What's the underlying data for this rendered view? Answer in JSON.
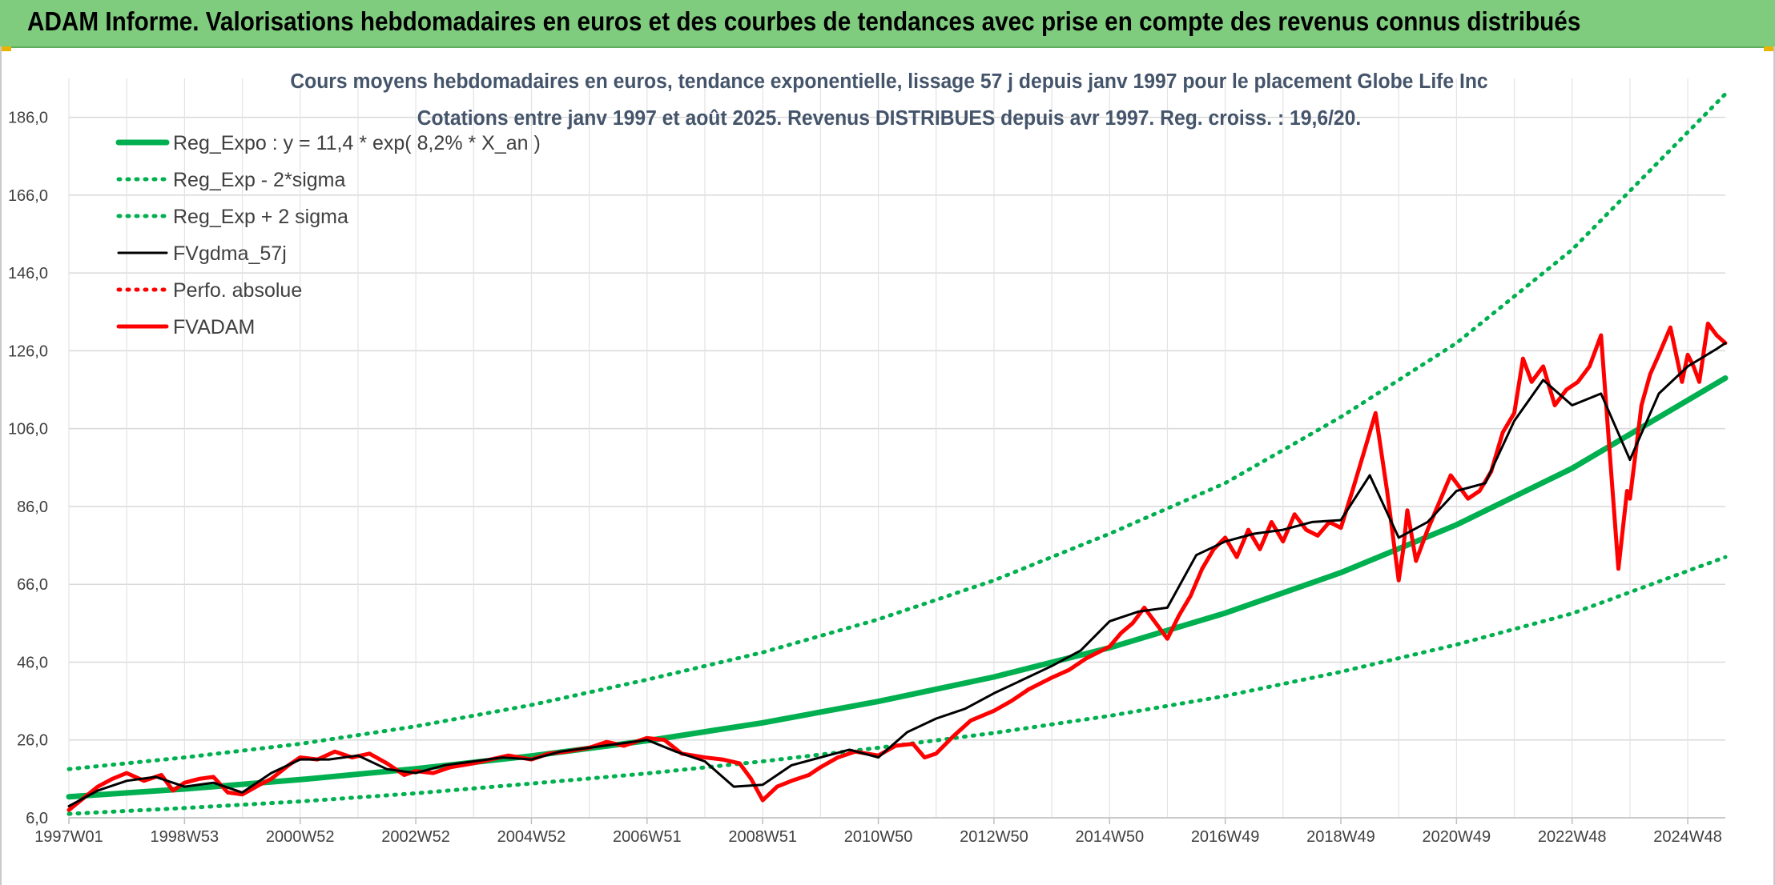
{
  "header": {
    "title": "ADAM Informe. Valorisations hebdomadaires en euros et des courbes de tendances avec prise en compte des revenus connus distribués"
  },
  "colors": {
    "header_bg": "#7fcc7f",
    "trend": "#00b050",
    "adam": "#ff0000",
    "smoothed": "#000000",
    "title": "#44546a"
  },
  "chart_data": {
    "type": "line",
    "title": "Cours moyens hebdomadaires en euros, tendance exponentielle, lissage 57 j depuis janv 1997 pour le placement Globe Life Inc",
    "subtitle": "Cotations entre janv 1997 et août 2025. Revenus DISTRIBUES depuis avr 1997. Reg. croiss. : 19,6/20.",
    "xlabel": "",
    "ylabel": "",
    "x_range": [
      1997.0,
      2025.65
    ],
    "ylim": [
      6,
      196
    ],
    "y_ticks": [
      6,
      26,
      46,
      66,
      86,
      106,
      126,
      146,
      166,
      186
    ],
    "y_tick_labels": [
      "6,0",
      "26,0",
      "46,0",
      "66,0",
      "86,0",
      "106,0",
      "126,0",
      "146,0",
      "166,0",
      "186,0"
    ],
    "x_ticks": [
      {
        "label": "1997W01",
        "x": 1997.0
      },
      {
        "label": "1998W53",
        "x": 1999.0
      },
      {
        "label": "2000W52",
        "x": 2001.0
      },
      {
        "label": "2002W52",
        "x": 2003.0
      },
      {
        "label": "2004W52",
        "x": 2005.0
      },
      {
        "label": "2006W51",
        "x": 2007.0
      },
      {
        "label": "2008W51",
        "x": 2009.0
      },
      {
        "label": "2010W50",
        "x": 2011.0
      },
      {
        "label": "2012W50",
        "x": 2013.0
      },
      {
        "label": "2014W50",
        "x": 2015.0
      },
      {
        "label": "2016W49",
        "x": 2017.0
      },
      {
        "label": "2018W49",
        "x": 2019.0
      },
      {
        "label": "2020W49",
        "x": 2021.0
      },
      {
        "label": "2022W48",
        "x": 2023.0
      },
      {
        "label": "2024W48",
        "x": 2025.0
      }
    ],
    "grid": true,
    "legend_position": "top-left",
    "series": [
      {
        "name": "Reg_Expo : y = 11,4 * exp( 8,2% *  X_an )",
        "style": "solid-thick",
        "color": "#00b050",
        "x": [
          1997.0,
          1999.0,
          2001.0,
          2003.0,
          2005.0,
          2007.0,
          2009.0,
          2011.0,
          2013.0,
          2015.0,
          2017.0,
          2019.0,
          2021.0,
          2023.0,
          2025.65
        ],
        "values": [
          11.4,
          13.4,
          15.8,
          18.6,
          21.9,
          25.8,
          30.4,
          35.9,
          42.2,
          49.7,
          58.6,
          69.0,
          81.3,
          95.8,
          119.0
        ]
      },
      {
        "name": "Reg_Exp - 2*sigma",
        "style": "dotted",
        "color": "#00b050",
        "x": [
          1997.0,
          1999.0,
          2001.0,
          2003.0,
          2005.0,
          2007.0,
          2009.0,
          2011.0,
          2013.0,
          2015.0,
          2017.0,
          2019.0,
          2021.0,
          2023.0,
          2025.65
        ],
        "values": [
          7.0,
          8.5,
          10.2,
          12.3,
          14.8,
          17.4,
          20.5,
          24.0,
          27.8,
          32.2,
          37.3,
          43.5,
          50.5,
          58.5,
          73.0
        ]
      },
      {
        "name": "Reg_Exp + 2 sigma",
        "style": "dotted",
        "color": "#00b050",
        "x": [
          1997.0,
          1999.0,
          2001.0,
          2003.0,
          2005.0,
          2007.0,
          2009.0,
          2011.0,
          2013.0,
          2015.0,
          2017.0,
          2019.0,
          2021.0,
          2023.0,
          2025.65
        ],
        "values": [
          18.5,
          21.5,
          25.0,
          29.5,
          35.0,
          41.5,
          48.5,
          57.0,
          67.0,
          79.0,
          92.0,
          109.0,
          128.0,
          152.0,
          192.0
        ]
      },
      {
        "name": "FVgdma_57j",
        "style": "solid",
        "color": "#000000",
        "x": [
          1997.0,
          1997.5,
          1998.0,
          1998.5,
          1999.0,
          1999.5,
          2000.0,
          2000.5,
          2001.0,
          2001.5,
          2002.0,
          2002.5,
          2003.0,
          2003.5,
          2004.0,
          2004.5,
          2005.0,
          2005.5,
          2006.0,
          2006.5,
          2007.0,
          2007.5,
          2008.0,
          2008.5,
          2009.0,
          2009.5,
          2010.0,
          2010.5,
          2011.0,
          2011.5,
          2012.0,
          2012.5,
          2013.0,
          2013.5,
          2014.0,
          2014.5,
          2015.0,
          2015.5,
          2016.0,
          2016.5,
          2017.0,
          2017.5,
          2018.0,
          2018.5,
          2019.0,
          2019.5,
          2020.0,
          2020.5,
          2021.0,
          2021.5,
          2022.0,
          2022.5,
          2023.0,
          2023.5,
          2024.0,
          2024.5,
          2025.0,
          2025.5,
          2025.65
        ],
        "values": [
          9.0,
          13.0,
          15.5,
          16.5,
          14.0,
          15.0,
          12.5,
          17.5,
          21.0,
          21.0,
          22.0,
          18.5,
          17.5,
          19.5,
          20.5,
          21.5,
          21.0,
          23.0,
          24.0,
          25.0,
          26.0,
          23.0,
          20.5,
          14.0,
          14.5,
          19.5,
          21.5,
          23.5,
          21.5,
          28.0,
          31.5,
          34.0,
          38.0,
          41.5,
          45.0,
          49.0,
          56.5,
          59.0,
          60.0,
          73.5,
          77.0,
          79.0,
          80.0,
          82.0,
          82.5,
          94.0,
          78.0,
          82.0,
          90.0,
          92.0,
          108.0,
          118.5,
          112.0,
          115.0,
          98.0,
          115.0,
          122.0,
          126.5,
          128.0
        ]
      },
      {
        "name": "Perfo. absolue",
        "style": "dotted",
        "color": "#ff0000",
        "x": [],
        "values": []
      },
      {
        "name": "FVADAM",
        "style": "solid-thick",
        "color": "#ff0000",
        "x": [
          1997.0,
          1997.25,
          1997.5,
          1997.75,
          1998.0,
          1998.3,
          1998.6,
          1998.8,
          1999.0,
          1999.25,
          1999.5,
          1999.75,
          2000.0,
          2000.3,
          2000.5,
          2000.8,
          2001.0,
          2001.3,
          2001.6,
          2001.9,
          2002.2,
          2002.5,
          2002.8,
          2003.0,
          2003.3,
          2003.6,
          2004.0,
          2004.3,
          2004.6,
          2005.0,
          2005.3,
          2005.6,
          2006.0,
          2006.3,
          2006.6,
          2007.0,
          2007.3,
          2007.6,
          2008.0,
          2008.3,
          2008.6,
          2008.8,
          2009.0,
          2009.25,
          2009.5,
          2009.8,
          2010.0,
          2010.3,
          2010.6,
          2011.0,
          2011.3,
          2011.6,
          2011.8,
          2012.0,
          2012.3,
          2012.6,
          2013.0,
          2013.3,
          2013.6,
          2014.0,
          2014.3,
          2014.6,
          2015.0,
          2015.2,
          2015.4,
          2015.6,
          2015.8,
          2016.0,
          2016.2,
          2016.4,
          2016.6,
          2016.8,
          2017.0,
          2017.2,
          2017.4,
          2017.6,
          2017.8,
          2018.0,
          2018.2,
          2018.4,
          2018.6,
          2018.8,
          2019.0,
          2019.2,
          2019.4,
          2019.6,
          2019.8,
          2020.0,
          2020.08,
          2020.15,
          2020.3,
          2020.5,
          2020.7,
          2020.9,
          2021.0,
          2021.2,
          2021.4,
          2021.6,
          2021.8,
          2022.0,
          2022.15,
          2022.3,
          2022.5,
          2022.7,
          2022.9,
          2023.1,
          2023.3,
          2023.5,
          2023.65,
          2023.8,
          2023.95,
          2024.0,
          2024.1,
          2024.2,
          2024.35,
          2024.5,
          2024.7,
          2024.9,
          2025.0,
          2025.1,
          2025.2,
          2025.35,
          2025.5,
          2025.65
        ],
        "values": [
          8.0,
          11.0,
          14.0,
          16.0,
          17.5,
          15.5,
          17.0,
          13.0,
          15.0,
          16.0,
          16.5,
          12.5,
          12.0,
          14.5,
          16.0,
          19.5,
          21.5,
          21.0,
          23.0,
          21.5,
          22.5,
          20.0,
          17.0,
          18.0,
          17.5,
          19.0,
          20.0,
          21.0,
          22.0,
          21.0,
          22.5,
          23.0,
          24.0,
          25.5,
          24.5,
          26.5,
          26.0,
          22.5,
          21.5,
          21.0,
          20.0,
          16.0,
          10.5,
          14.0,
          15.5,
          17.0,
          19.0,
          21.5,
          23.0,
          22.0,
          24.5,
          25.0,
          21.5,
          22.5,
          27.0,
          31.0,
          33.5,
          36.0,
          39.0,
          42.0,
          44.0,
          47.0,
          50.0,
          53.5,
          56.0,
          60.0,
          56.0,
          52.0,
          58.0,
          63.0,
          70.0,
          75.0,
          78.0,
          73.0,
          80.0,
          75.0,
          82.0,
          77.0,
          84.0,
          80.0,
          78.5,
          82.0,
          80.5,
          90.0,
          100.0,
          110.0,
          90.0,
          67.0,
          75.0,
          85.0,
          72.0,
          80.0,
          87.0,
          94.0,
          92.0,
          88.0,
          90.0,
          95.0,
          105.0,
          110.0,
          124.0,
          118.0,
          122.0,
          112.0,
          116.0,
          118.0,
          122.0,
          130.0,
          100.0,
          70.0,
          90.0,
          88.0,
          100.0,
          112.0,
          120.0,
          125.0,
          132.0,
          118.0,
          125.0,
          122.0,
          118.0,
          133.0,
          130.0,
          128.0
        ]
      }
    ]
  }
}
